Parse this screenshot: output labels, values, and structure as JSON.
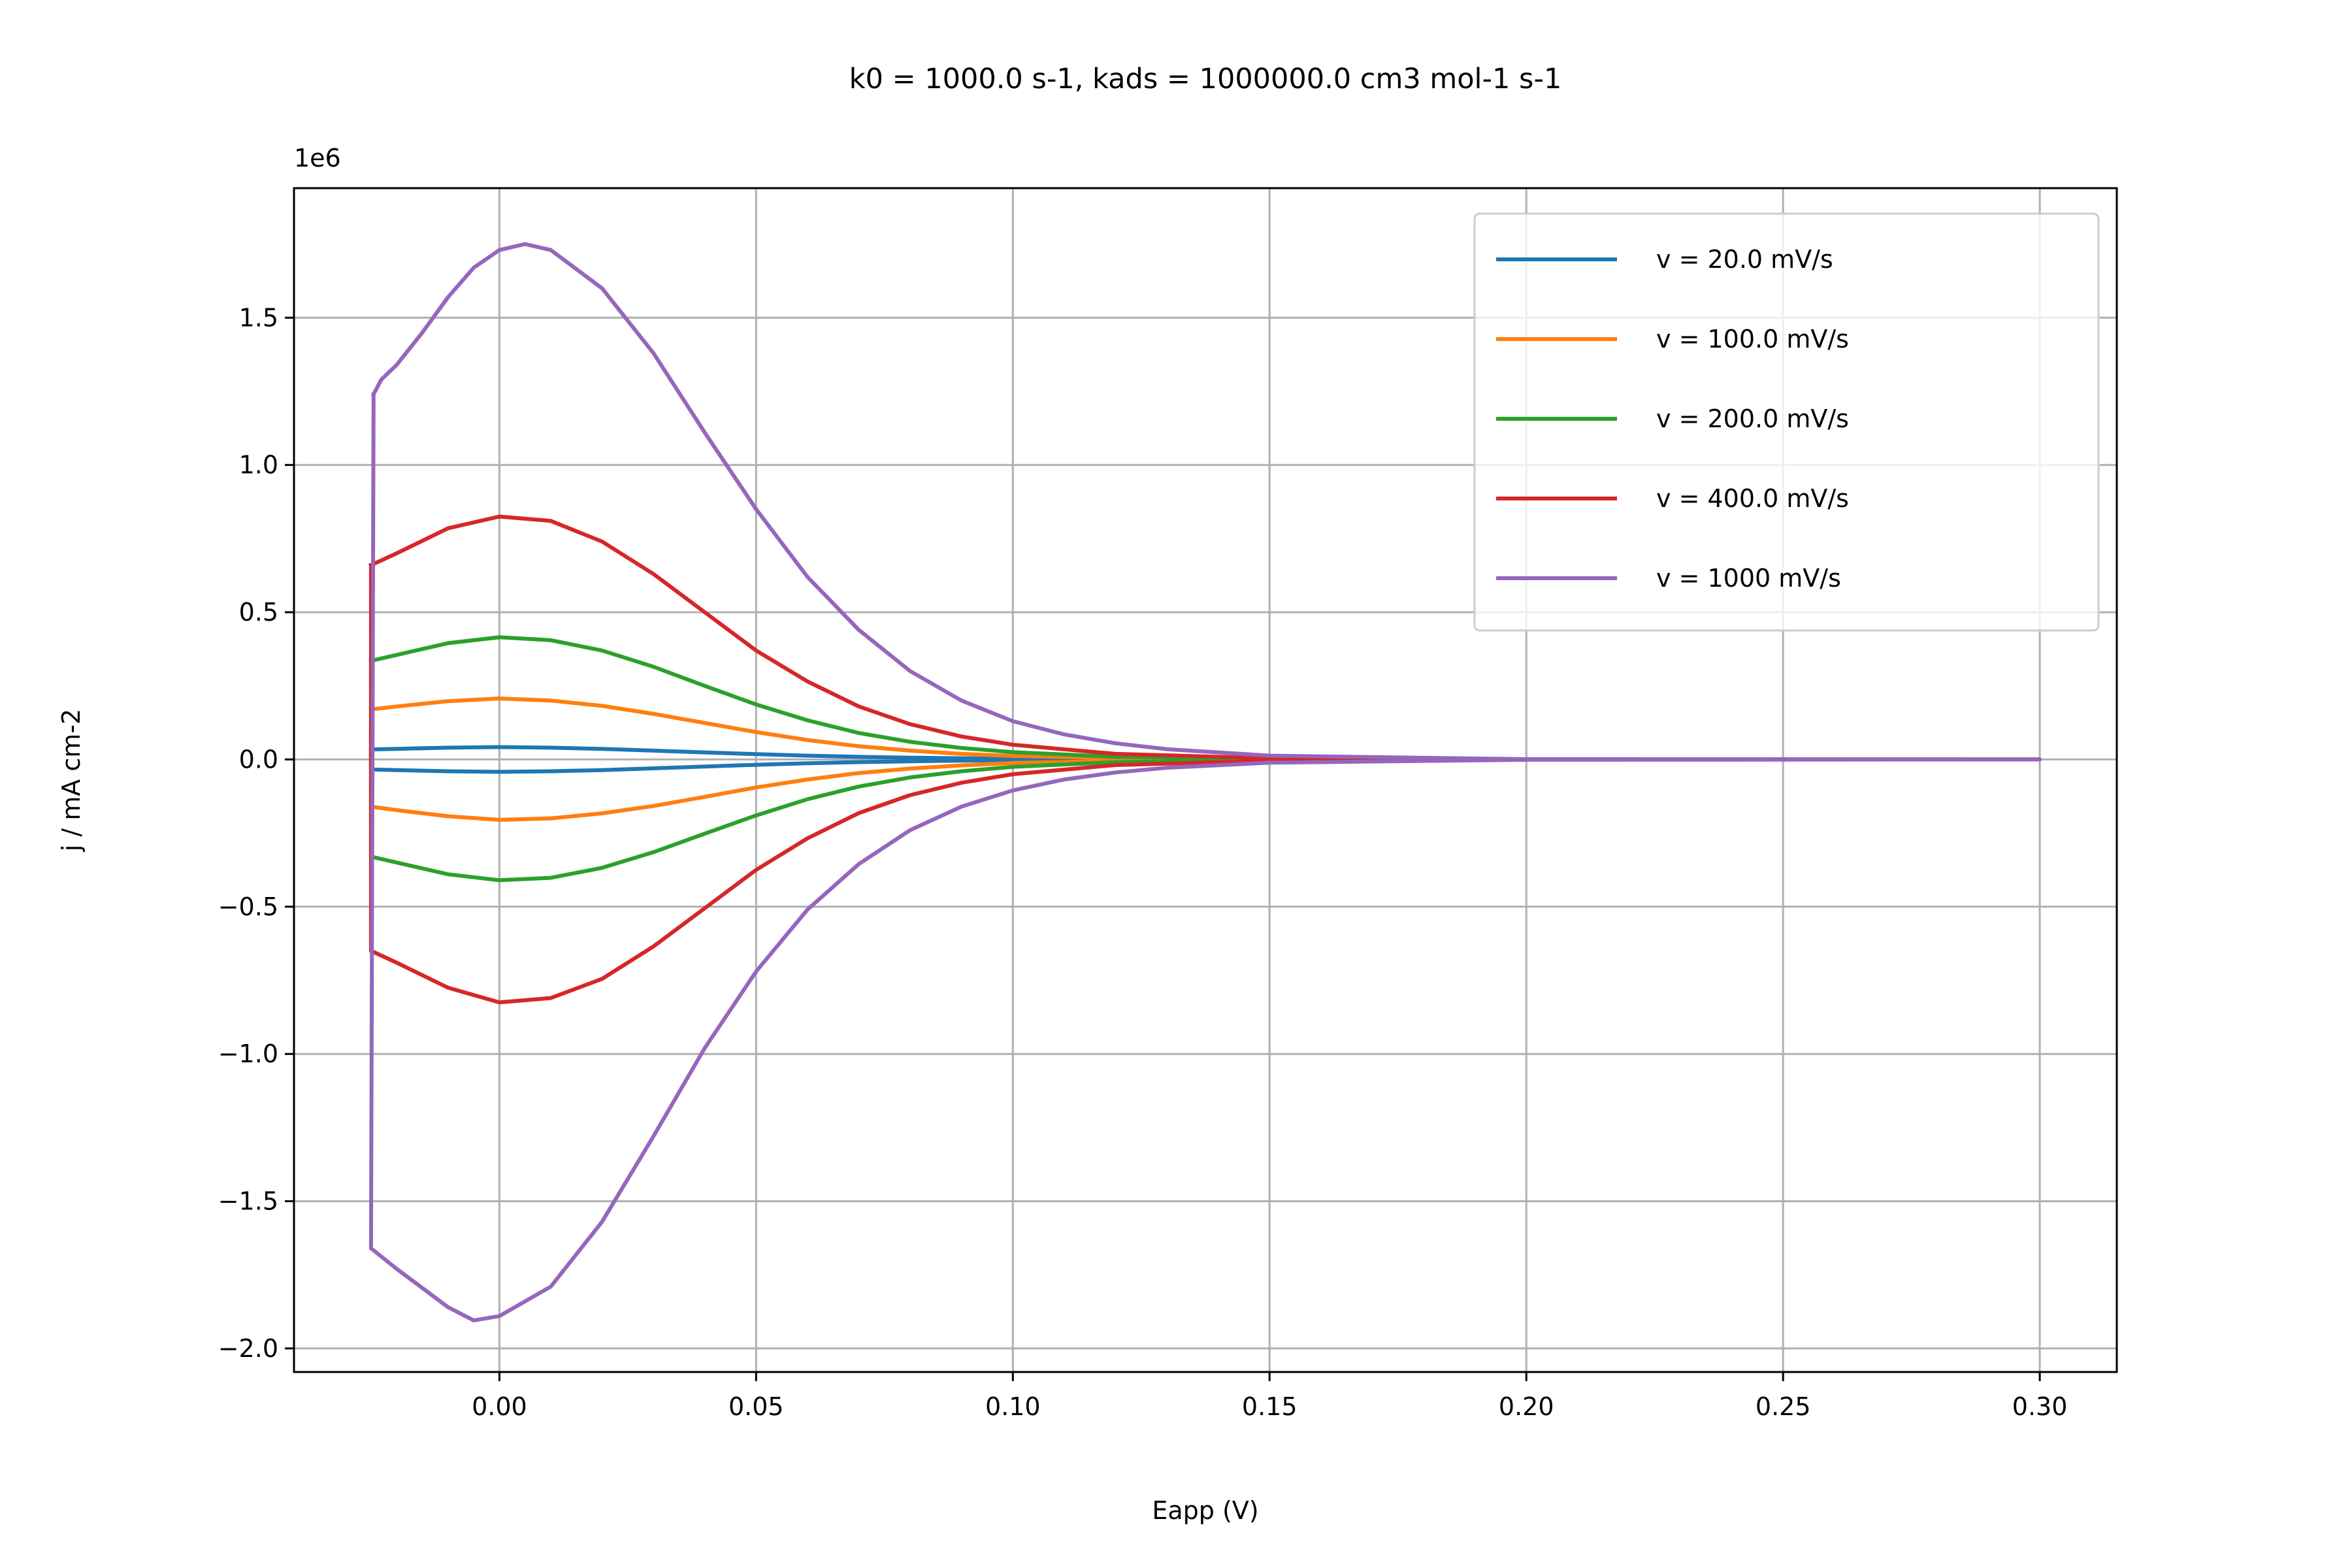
{
  "chart_data": {
    "type": "line",
    "title": "k0 = 1000.0 s-1, kads = 1000000.0 cm3 mol-1 s-1",
    "xlabel": "Eapp (V)",
    "ylabel": "j / mA cm-2",
    "y_offset_label": "1e6",
    "xlim": [
      -0.04,
      0.315
    ],
    "ylim": [
      -2.08,
      1.94
    ],
    "x_ticks": [
      0.0,
      0.05,
      0.1,
      0.15,
      0.2,
      0.25,
      0.3
    ],
    "x_tick_labels": [
      "0.00",
      "0.05",
      "0.10",
      "0.15",
      "0.20",
      "0.25",
      "0.30"
    ],
    "y_ticks": [
      -2.0,
      -1.5,
      -1.0,
      -0.5,
      0.0,
      0.5,
      1.0,
      1.5
    ],
    "y_tick_labels": [
      "−2.0",
      "−1.5",
      "−1.0",
      "−0.5",
      "0.0",
      "0.5",
      "1.0",
      "1.5"
    ],
    "grid": true,
    "legend_position": "top-right",
    "series": [
      {
        "name": "v = 20.0 mV/s",
        "color": "#1f77b4",
        "x_min": -0.025,
        "x_max": 0.3,
        "anodic": [
          [
            -0.025,
            0.034
          ],
          [
            -0.02,
            0.036
          ],
          [
            -0.01,
            0.04
          ],
          [
            0.0,
            0.042
          ],
          [
            0.01,
            0.04
          ],
          [
            0.02,
            0.036
          ],
          [
            0.03,
            0.03
          ],
          [
            0.04,
            0.024
          ],
          [
            0.05,
            0.018
          ],
          [
            0.06,
            0.013
          ],
          [
            0.07,
            0.009
          ],
          [
            0.08,
            0.006
          ],
          [
            0.09,
            0.004
          ],
          [
            0.1,
            0.0025
          ],
          [
            0.12,
            0.001
          ],
          [
            0.15,
            0.0002
          ],
          [
            0.2,
            0.0
          ],
          [
            0.3,
            0.0
          ]
        ],
        "cathodic": [
          [
            -0.025,
            -0.034
          ],
          [
            -0.02,
            -0.036
          ],
          [
            -0.01,
            -0.04
          ],
          [
            0.0,
            -0.042
          ],
          [
            0.01,
            -0.04
          ],
          [
            0.02,
            -0.036
          ],
          [
            0.03,
            -0.03
          ],
          [
            0.04,
            -0.024
          ],
          [
            0.05,
            -0.018
          ],
          [
            0.06,
            -0.013
          ],
          [
            0.07,
            -0.009
          ],
          [
            0.08,
            -0.006
          ],
          [
            0.09,
            -0.004
          ],
          [
            0.1,
            -0.0025
          ],
          [
            0.12,
            -0.001
          ],
          [
            0.15,
            -0.0002
          ],
          [
            0.2,
            0.0
          ],
          [
            0.3,
            0.0
          ]
        ]
      },
      {
        "name": "v = 100.0 mV/s",
        "color": "#ff7f0e",
        "x_min": -0.025,
        "x_max": 0.3,
        "anodic": [
          [
            -0.025,
            0.17
          ],
          [
            -0.02,
            0.18
          ],
          [
            -0.01,
            0.198
          ],
          [
            0.0,
            0.207
          ],
          [
            0.01,
            0.2
          ],
          [
            0.02,
            0.182
          ],
          [
            0.03,
            0.155
          ],
          [
            0.04,
            0.124
          ],
          [
            0.05,
            0.093
          ],
          [
            0.06,
            0.066
          ],
          [
            0.07,
            0.045
          ],
          [
            0.08,
            0.03
          ],
          [
            0.09,
            0.019
          ],
          [
            0.1,
            0.012
          ],
          [
            0.12,
            0.0045
          ],
          [
            0.15,
            0.001
          ],
          [
            0.2,
            0.0
          ],
          [
            0.3,
            0.0
          ]
        ],
        "cathodic": [
          [
            -0.025,
            -0.16
          ],
          [
            -0.02,
            -0.172
          ],
          [
            -0.01,
            -0.193
          ],
          [
            0.0,
            -0.205
          ],
          [
            0.01,
            -0.2
          ],
          [
            0.02,
            -0.183
          ],
          [
            0.03,
            -0.158
          ],
          [
            0.04,
            -0.127
          ],
          [
            0.05,
            -0.095
          ],
          [
            0.06,
            -0.068
          ],
          [
            0.07,
            -0.046
          ],
          [
            0.08,
            -0.031
          ],
          [
            0.09,
            -0.02
          ],
          [
            0.1,
            -0.012
          ],
          [
            0.12,
            -0.0045
          ],
          [
            0.15,
            -0.001
          ],
          [
            0.2,
            0.0
          ],
          [
            0.3,
            0.0
          ]
        ]
      },
      {
        "name": "v = 200.0 mV/s",
        "color": "#2ca02c",
        "x_min": -0.025,
        "x_max": 0.3,
        "anodic": [
          [
            -0.025,
            0.335
          ],
          [
            -0.02,
            0.355
          ],
          [
            -0.01,
            0.395
          ],
          [
            0.0,
            0.415
          ],
          [
            0.01,
            0.405
          ],
          [
            0.02,
            0.37
          ],
          [
            0.03,
            0.315
          ],
          [
            0.04,
            0.25
          ],
          [
            0.05,
            0.187
          ],
          [
            0.06,
            0.133
          ],
          [
            0.07,
            0.09
          ],
          [
            0.08,
            0.06
          ],
          [
            0.09,
            0.039
          ],
          [
            0.1,
            0.025
          ],
          [
            0.12,
            0.009
          ],
          [
            0.15,
            0.002
          ],
          [
            0.2,
            0.0
          ],
          [
            0.3,
            0.0
          ]
        ],
        "cathodic": [
          [
            -0.025,
            -0.33
          ],
          [
            -0.02,
            -0.35
          ],
          [
            -0.01,
            -0.39
          ],
          [
            0.0,
            -0.41
          ],
          [
            0.01,
            -0.402
          ],
          [
            0.02,
            -0.368
          ],
          [
            0.03,
            -0.315
          ],
          [
            0.04,
            -0.252
          ],
          [
            0.05,
            -0.19
          ],
          [
            0.06,
            -0.135
          ],
          [
            0.07,
            -0.092
          ],
          [
            0.08,
            -0.061
          ],
          [
            0.09,
            -0.04
          ],
          [
            0.1,
            -0.025
          ],
          [
            0.12,
            -0.009
          ],
          [
            0.15,
            -0.002
          ],
          [
            0.2,
            0.0
          ],
          [
            0.3,
            0.0
          ]
        ]
      },
      {
        "name": "v = 400.0 mV/s",
        "color": "#d62728",
        "x_min": -0.025,
        "x_max": 0.3,
        "anodic": [
          [
            -0.025,
            0.66
          ],
          [
            -0.02,
            0.7
          ],
          [
            -0.01,
            0.785
          ],
          [
            0.0,
            0.825
          ],
          [
            0.01,
            0.81
          ],
          [
            0.02,
            0.74
          ],
          [
            0.03,
            0.63
          ],
          [
            0.04,
            0.5
          ],
          [
            0.05,
            0.37
          ],
          [
            0.06,
            0.265
          ],
          [
            0.07,
            0.18
          ],
          [
            0.08,
            0.12
          ],
          [
            0.09,
            0.078
          ],
          [
            0.1,
            0.05
          ],
          [
            0.12,
            0.019
          ],
          [
            0.15,
            0.004
          ],
          [
            0.2,
            0.0
          ],
          [
            0.3,
            0.0
          ]
        ],
        "cathodic": [
          [
            -0.025,
            -0.65
          ],
          [
            -0.02,
            -0.69
          ],
          [
            -0.01,
            -0.775
          ],
          [
            0.0,
            -0.825
          ],
          [
            0.01,
            -0.81
          ],
          [
            0.02,
            -0.745
          ],
          [
            0.03,
            -0.635
          ],
          [
            0.04,
            -0.505
          ],
          [
            0.05,
            -0.375
          ],
          [
            0.06,
            -0.268
          ],
          [
            0.07,
            -0.182
          ],
          [
            0.08,
            -0.121
          ],
          [
            0.09,
            -0.079
          ],
          [
            0.1,
            -0.05
          ],
          [
            0.12,
            -0.019
          ],
          [
            0.15,
            -0.004
          ],
          [
            0.2,
            0.0
          ],
          [
            0.3,
            0.0
          ]
        ]
      },
      {
        "name": "v = 1000 mV/s",
        "color": "#9467bd",
        "x_min": -0.025,
        "x_max": 0.3,
        "anodic": [
          [
            -0.0245,
            1.24
          ],
          [
            -0.023,
            1.29
          ],
          [
            -0.02,
            1.34
          ],
          [
            -0.015,
            1.45
          ],
          [
            -0.01,
            1.57
          ],
          [
            -0.005,
            1.67
          ],
          [
            0.0,
            1.73
          ],
          [
            0.005,
            1.75
          ],
          [
            0.01,
            1.73
          ],
          [
            0.02,
            1.6
          ],
          [
            0.03,
            1.38
          ],
          [
            0.04,
            1.11
          ],
          [
            0.05,
            0.85
          ],
          [
            0.06,
            0.62
          ],
          [
            0.07,
            0.44
          ],
          [
            0.08,
            0.3
          ],
          [
            0.09,
            0.2
          ],
          [
            0.1,
            0.13
          ],
          [
            0.11,
            0.085
          ],
          [
            0.12,
            0.055
          ],
          [
            0.13,
            0.035
          ],
          [
            0.15,
            0.013
          ],
          [
            0.2,
            0.001
          ],
          [
            0.3,
            0.0
          ]
        ],
        "cathodic": [
          [
            -0.025,
            -1.66
          ],
          [
            -0.02,
            -1.73
          ],
          [
            -0.01,
            -1.86
          ],
          [
            -0.005,
            -1.905
          ],
          [
            0.0,
            -1.89
          ],
          [
            0.01,
            -1.79
          ],
          [
            0.02,
            -1.57
          ],
          [
            0.03,
            -1.28
          ],
          [
            0.04,
            -0.98
          ],
          [
            0.05,
            -0.72
          ],
          [
            0.06,
            -0.51
          ],
          [
            0.07,
            -0.355
          ],
          [
            0.08,
            -0.24
          ],
          [
            0.09,
            -0.16
          ],
          [
            0.1,
            -0.105
          ],
          [
            0.11,
            -0.068
          ],
          [
            0.12,
            -0.044
          ],
          [
            0.13,
            -0.028
          ],
          [
            0.15,
            -0.011
          ],
          [
            0.2,
            -0.001
          ],
          [
            0.3,
            0.0
          ]
        ]
      }
    ]
  }
}
